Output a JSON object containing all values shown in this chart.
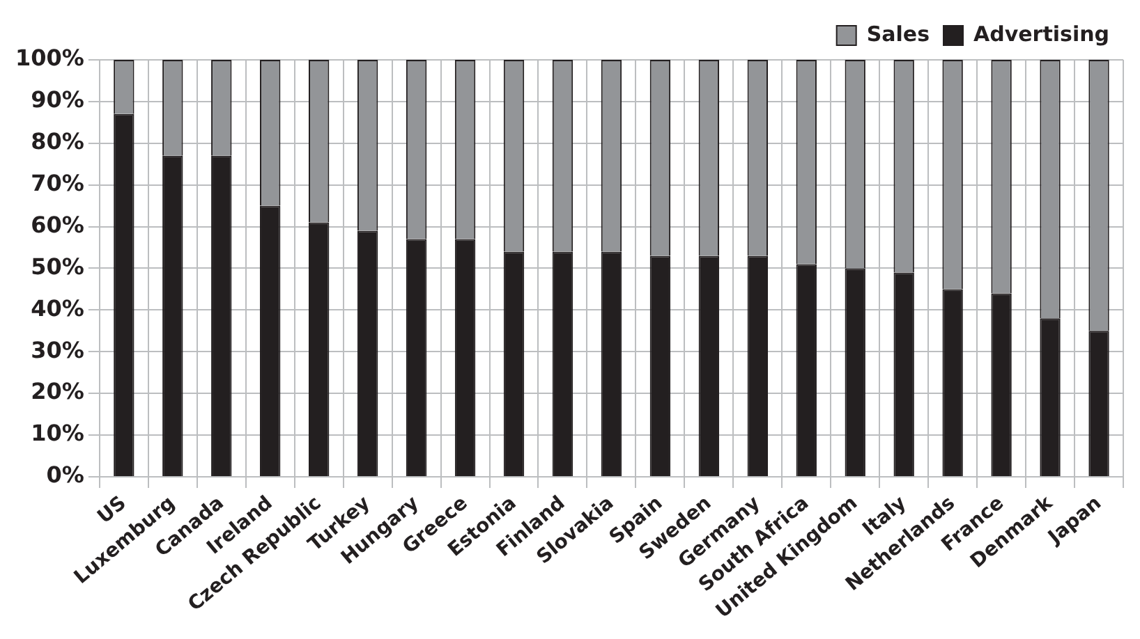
{
  "chart_data": {
    "type": "bar",
    "stacked": true,
    "legend": "top right",
    "grid": true,
    "categories": [
      "US",
      "Luxemburg",
      "Canada",
      "Ireland",
      "Czech Republic",
      "Turkey",
      "Hungary",
      "Greece",
      "Estonia",
      "Finland",
      "Slovakia",
      "Spain",
      "Sweden",
      "Germany",
      "South Africa",
      "United Kingdom",
      "Italy",
      "Netherlands",
      "France",
      "Denmark",
      "Japan"
    ],
    "series": [
      {
        "name": "Advertising",
        "color": "#231f20",
        "values": [
          87,
          77,
          77,
          65,
          61,
          59,
          57,
          57,
          54,
          54,
          54,
          53,
          53,
          53,
          51,
          50,
          49,
          45,
          44,
          38,
          35
        ]
      },
      {
        "name": "Sales",
        "color": "#939598",
        "values": [
          13,
          23,
          23,
          35,
          39,
          41,
          43,
          43,
          46,
          46,
          46,
          47,
          47,
          47,
          49,
          50,
          51,
          55,
          56,
          62,
          65
        ]
      }
    ],
    "ylim": [
      0,
      100
    ],
    "yticks": [
      {
        "value": 0,
        "label": "0%"
      },
      {
        "value": 10,
        "label": "10%"
      },
      {
        "value": 20,
        "label": "20%"
      },
      {
        "value": 30,
        "label": "30%"
      },
      {
        "value": 40,
        "label": "40%"
      },
      {
        "value": 50,
        "label": "50%"
      },
      {
        "value": 60,
        "label": "60%"
      },
      {
        "value": 70,
        "label": "70%"
      },
      {
        "value": 80,
        "label": "80%"
      },
      {
        "value": 90,
        "label": "90%"
      },
      {
        "value": 100,
        "label": "100%"
      }
    ]
  }
}
